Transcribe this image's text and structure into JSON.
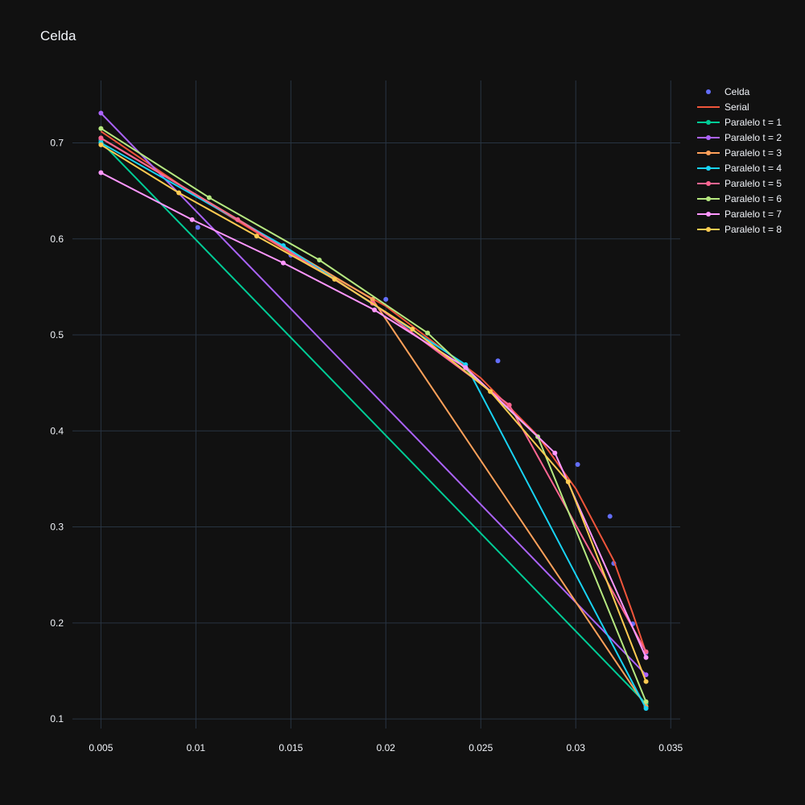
{
  "chart_data": {
    "type": "line",
    "title": "Celda",
    "xlabel": "",
    "ylabel": "",
    "xlim": [
      0.0035,
      0.0355
    ],
    "ylim": [
      0.09,
      0.765
    ],
    "xticks": [
      0.005,
      0.01,
      0.015,
      0.02,
      0.025,
      0.03,
      0.035
    ],
    "xtick_labels": [
      "0.005",
      "0.01",
      "0.015",
      "0.02",
      "0.025",
      "0.03",
      "0.035"
    ],
    "yticks": [
      0.1,
      0.2,
      0.3,
      0.4,
      0.5,
      0.6,
      0.7
    ],
    "ytick_labels": [
      "0.1",
      "0.2",
      "0.3",
      "0.4",
      "0.5",
      "0.6",
      "0.7"
    ],
    "grid": true,
    "legend_position": "top-right",
    "background": "#111111",
    "grid_color": "#283442",
    "series": [
      {
        "name": "Celda",
        "mode": "markers",
        "color": "#636efa",
        "x": [
          0.005,
          0.0101,
          0.015,
          0.02,
          0.0259,
          0.0301,
          0.0318,
          0.032,
          0.033,
          0.0337
        ],
        "y": [
          0.703,
          0.612,
          0.583,
          0.537,
          0.473,
          0.365,
          0.311,
          0.262,
          0.199,
          0.169
        ]
      },
      {
        "name": "Serial",
        "mode": "lines",
        "color": "#ef553b",
        "x": [
          0.005,
          0.01,
          0.015,
          0.02,
          0.025,
          0.028,
          0.03,
          0.032,
          0.033,
          0.0337
        ],
        "y": [
          0.712,
          0.645,
          0.585,
          0.53,
          0.455,
          0.395,
          0.34,
          0.265,
          0.21,
          0.169
        ]
      },
      {
        "name": "Paralelo t = 1",
        "mode": "lines+markers",
        "color": "#00cc96",
        "x": [
          0.005,
          0.0337
        ],
        "y": [
          0.701,
          0.116
        ]
      },
      {
        "name": "Paralelo t = 2",
        "mode": "lines+markers",
        "color": "#ab63fa",
        "x": [
          0.005,
          0.0337
        ],
        "y": [
          0.731,
          0.146
        ]
      },
      {
        "name": "Paralelo t = 3",
        "mode": "lines+markers",
        "color": "#ffa15a",
        "x": [
          0.005,
          0.0193,
          0.0337
        ],
        "y": [
          0.705,
          0.537,
          0.113
        ]
      },
      {
        "name": "Paralelo t = 4",
        "mode": "lines+markers",
        "color": "#19d3f3",
        "x": [
          0.005,
          0.0146,
          0.0242,
          0.0337
        ],
        "y": [
          0.7,
          0.593,
          0.469,
          0.111
        ]
      },
      {
        "name": "Paralelo t = 5",
        "mode": "lines+markers",
        "color": "#ff6692",
        "x": [
          0.005,
          0.0122,
          0.0193,
          0.0265,
          0.0337
        ],
        "y": [
          0.705,
          0.62,
          0.533,
          0.427,
          0.17
        ]
      },
      {
        "name": "Paralelo t = 6",
        "mode": "lines+markers",
        "color": "#b6e880",
        "x": [
          0.005,
          0.0107,
          0.0165,
          0.0222,
          0.028,
          0.0337
        ],
        "y": [
          0.715,
          0.643,
          0.578,
          0.502,
          0.394,
          0.118
        ]
      },
      {
        "name": "Paralelo t = 7",
        "mode": "lines+markers",
        "color": "#ff97ff",
        "x": [
          0.005,
          0.0098,
          0.0146,
          0.0194,
          0.0242,
          0.0289,
          0.0337
        ],
        "y": [
          0.669,
          0.62,
          0.575,
          0.526,
          0.466,
          0.377,
          0.164
        ]
      },
      {
        "name": "Paralelo t = 8",
        "mode": "lines+markers",
        "color": "#fecb52",
        "x": [
          0.005,
          0.0091,
          0.0132,
          0.0173,
          0.0214,
          0.0255,
          0.0296,
          0.0337
        ],
        "y": [
          0.698,
          0.648,
          0.603,
          0.558,
          0.506,
          0.441,
          0.347,
          0.139
        ]
      }
    ]
  }
}
